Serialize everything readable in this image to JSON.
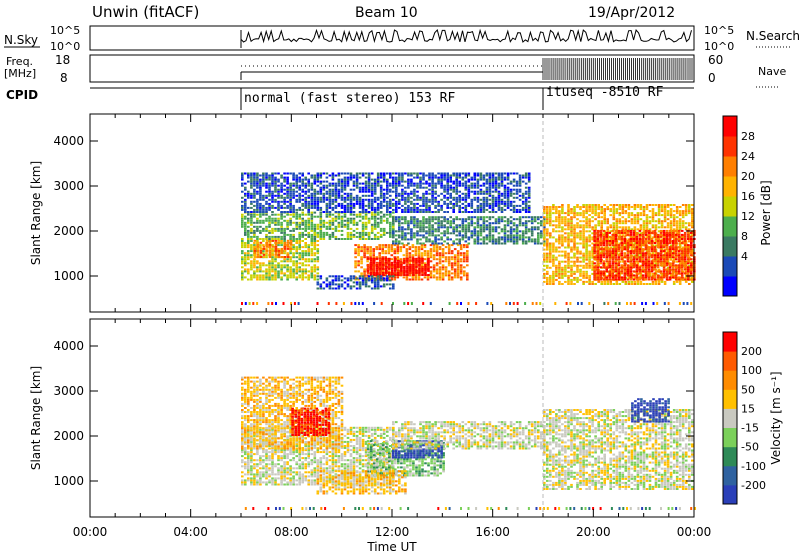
{
  "header": {
    "station": "Unwin (fitACF)",
    "beam": "Beam 10",
    "date": "19/Apr/2012"
  },
  "noise_panel": {
    "left_label": "N.Sky",
    "right_label": "N.Search",
    "left_ticks": [
      "10^5",
      "10^0"
    ],
    "right_ticks": [
      "10^5",
      "10^0"
    ]
  },
  "freq_panel": {
    "left_label_1": "Freq.",
    "left_label_2": "[MHz]",
    "right_label": "Nave",
    "left_ticks": [
      "18",
      "8"
    ],
    "right_ticks": [
      "60",
      "0"
    ]
  },
  "cpid": {
    "label": "CPID",
    "segments": [
      {
        "start_hour": 6.0,
        "label": "normal (fast stereo) 153 RF"
      },
      {
        "start_hour": 18.0,
        "label": "ituseq -8510 RF"
      }
    ]
  },
  "x_axis": {
    "title": "Time UT",
    "range_hours": [
      0,
      24
    ],
    "ticks": [
      "00:00",
      "04:00",
      "08:00",
      "12:00",
      "16:00",
      "20:00",
      "00:00"
    ]
  },
  "power_panel": {
    "ylabel": "Slant Range [km]",
    "yticks": [
      "4000",
      "3000",
      "2000",
      "1000"
    ],
    "ytick_values": [
      4000,
      3000,
      2000,
      1000
    ],
    "ylim": [
      200,
      4600
    ],
    "colorbar_label": "Power [dB]",
    "colorbar_ticks": [
      "28",
      "24",
      "20",
      "16",
      "12",
      "8",
      "4"
    ],
    "colors": [
      "#0000ff",
      "#1b4ab7",
      "#3a7a62",
      "#4cae4c",
      "#c8d200",
      "#ffb300",
      "#ff7f00",
      "#ff3300",
      "#ff0000"
    ]
  },
  "velocity_panel": {
    "ylabel": "Slant Range [km]",
    "yticks": [
      "4000",
      "3000",
      "2000",
      "1000"
    ],
    "ytick_values": [
      4000,
      3000,
      2000,
      1000
    ],
    "ylim": [
      200,
      4600
    ],
    "colorbar_label": "Velocity [m s⁻¹]",
    "colorbar_ticks": [
      "200",
      "100",
      "50",
      "15",
      "-15",
      "-50",
      "-100",
      "-200"
    ],
    "colors": [
      "#2a3fb8",
      "#2f62a0",
      "#2e8a57",
      "#7bd05a",
      "#c9c9c0",
      "#ffc000",
      "#ff8c00",
      "#ff5a00",
      "#ff0000"
    ]
  },
  "chart_data": {
    "type": "heatmap",
    "description_fields": [
      "time_hours",
      "slant_range_km"
    ],
    "power_regions": [
      {
        "t0": 6.0,
        "t1": 9.0,
        "r0": 900,
        "r1": 1800,
        "level": 4
      },
      {
        "t0": 6.5,
        "t1": 8.0,
        "r0": 1400,
        "r1": 1800,
        "level": 6
      },
      {
        "t0": 6.0,
        "t1": 12.0,
        "r0": 1800,
        "r1": 2400,
        "level": 3
      },
      {
        "t0": 6.0,
        "t1": 17.5,
        "r0": 2400,
        "r1": 3300,
        "level": 1
      },
      {
        "t0": 10.5,
        "t1": 15.0,
        "r0": 900,
        "r1": 1700,
        "level": 6
      },
      {
        "t0": 11.0,
        "t1": 13.5,
        "r0": 1000,
        "r1": 1400,
        "level": 8
      },
      {
        "t0": 9.0,
        "t1": 12.0,
        "r0": 700,
        "r1": 1000,
        "level": 1
      },
      {
        "t0": 12.0,
        "t1": 18.0,
        "r0": 1700,
        "r1": 2300,
        "level": 2
      },
      {
        "t0": 18.0,
        "t1": 24.0,
        "r0": 800,
        "r1": 2600,
        "level": 5
      },
      {
        "t0": 20.0,
        "t1": 24.0,
        "r0": 900,
        "r1": 2000,
        "level": 7
      }
    ],
    "velocity_regions": [
      {
        "t0": 6.0,
        "t1": 12.0,
        "r0": 900,
        "r1": 2200,
        "level": 4
      },
      {
        "t0": 6.0,
        "t1": 10.0,
        "r0": 1700,
        "r1": 3300,
        "level": 5
      },
      {
        "t0": 8.0,
        "t1": 9.5,
        "r0": 2000,
        "r1": 2600,
        "level": 8
      },
      {
        "t0": 11.0,
        "t1": 14.0,
        "r0": 1100,
        "r1": 1900,
        "level": 3
      },
      {
        "t0": 12.0,
        "t1": 14.0,
        "r0": 1500,
        "r1": 1900,
        "level": 0
      },
      {
        "t0": 9.0,
        "t1": 12.5,
        "r0": 700,
        "r1": 1200,
        "level": 5
      },
      {
        "t0": 12.0,
        "t1": 18.0,
        "r0": 1700,
        "r1": 2300,
        "level": 4
      },
      {
        "t0": 18.0,
        "t1": 24.0,
        "r0": 800,
        "r1": 2600,
        "level": 4
      },
      {
        "t0": 21.5,
        "t1": 23.0,
        "r0": 2300,
        "r1": 2800,
        "level": 0
      }
    ]
  }
}
